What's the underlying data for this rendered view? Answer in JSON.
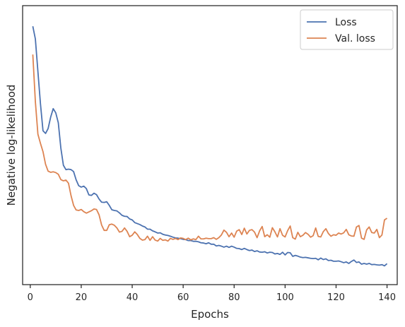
{
  "chart_data": {
    "type": "line",
    "title": "",
    "xlabel": "Epochs",
    "ylabel": "Negative log-likelihood",
    "xlim": [
      -3,
      144
    ],
    "ylim": [
      0,
      1
    ],
    "x_ticks": [
      0,
      20,
      40,
      60,
      80,
      100,
      120,
      140
    ],
    "y_ticks": [],
    "grid": false,
    "legend_position": "top-right",
    "colors": {
      "Loss": "#4c72b0",
      "Val. loss": "#dd8452"
    },
    "series": [
      {
        "name": "Loss",
        "x": [
          1,
          2,
          3,
          4,
          5,
          6,
          7,
          8,
          9,
          10,
          11,
          12,
          13,
          14,
          15,
          16,
          17,
          18,
          19,
          20,
          21,
          22,
          23,
          24,
          25,
          26,
          27,
          28,
          29,
          30,
          31,
          32,
          33,
          34,
          35,
          36,
          37,
          38,
          39,
          40,
          41,
          42,
          43,
          44,
          45,
          46,
          47,
          48,
          49,
          50,
          51,
          52,
          53,
          54,
          55,
          56,
          57,
          58,
          59,
          60,
          61,
          62,
          63,
          64,
          65,
          66,
          67,
          68,
          69,
          70,
          71,
          72,
          73,
          74,
          75,
          76,
          77,
          78,
          79,
          80,
          81,
          82,
          83,
          84,
          85,
          86,
          87,
          88,
          89,
          90,
          91,
          92,
          93,
          94,
          95,
          96,
          97,
          98,
          99,
          100,
          101,
          102,
          103,
          104,
          105,
          106,
          107,
          108,
          109,
          110,
          111,
          112,
          113,
          114,
          115,
          116,
          117,
          118,
          119,
          120,
          121,
          122,
          123,
          124,
          125,
          126,
          127,
          128,
          129,
          130,
          131,
          132,
          133,
          134,
          135,
          136,
          137,
          138,
          139,
          140
        ],
        "values": [
          0.947,
          0.895,
          0.761,
          0.628,
          0.517,
          0.506,
          0.526,
          0.573,
          0.608,
          0.591,
          0.55,
          0.446,
          0.375,
          0.357,
          0.359,
          0.357,
          0.349,
          0.315,
          0.291,
          0.285,
          0.289,
          0.279,
          0.253,
          0.251,
          0.26,
          0.254,
          0.236,
          0.223,
          0.222,
          0.225,
          0.21,
          0.192,
          0.189,
          0.187,
          0.179,
          0.169,
          0.165,
          0.164,
          0.154,
          0.15,
          0.139,
          0.135,
          0.131,
          0.125,
          0.121,
          0.112,
          0.112,
          0.105,
          0.101,
          0.096,
          0.097,
          0.091,
          0.088,
          0.086,
          0.083,
          0.079,
          0.076,
          0.075,
          0.073,
          0.07,
          0.069,
          0.065,
          0.065,
          0.062,
          0.062,
          0.06,
          0.056,
          0.055,
          0.052,
          0.056,
          0.05,
          0.05,
          0.043,
          0.045,
          0.042,
          0.038,
          0.042,
          0.037,
          0.042,
          0.038,
          0.033,
          0.032,
          0.028,
          0.033,
          0.028,
          0.024,
          0.026,
          0.02,
          0.023,
          0.018,
          0.017,
          0.019,
          0.014,
          0.017,
          0.016,
          0.01,
          0.012,
          0.008,
          0.017,
          0.006,
          0.016,
          0.015,
          0.0,
          0.004,
          0.001,
          -0.003,
          -0.005,
          -0.004,
          -0.006,
          -0.008,
          -0.009,
          -0.008,
          -0.014,
          -0.007,
          -0.013,
          -0.01,
          -0.017,
          -0.016,
          -0.02,
          -0.02,
          -0.019,
          -0.022,
          -0.026,
          -0.023,
          -0.029,
          -0.021,
          -0.015,
          -0.025,
          -0.023,
          -0.032,
          -0.029,
          -0.032,
          -0.029,
          -0.034,
          -0.033,
          -0.035,
          -0.036,
          -0.034,
          -0.039,
          -0.03
        ]
      },
      {
        "name": "Val. loss",
        "x": [
          1,
          2,
          3,
          4,
          5,
          6,
          7,
          8,
          9,
          10,
          11,
          12,
          13,
          14,
          15,
          16,
          17,
          18,
          19,
          20,
          21,
          22,
          23,
          24,
          25,
          26,
          27,
          28,
          29,
          30,
          31,
          32,
          33,
          34,
          35,
          36,
          37,
          38,
          39,
          40,
          41,
          42,
          43,
          44,
          45,
          46,
          47,
          48,
          49,
          50,
          51,
          52,
          53,
          54,
          55,
          56,
          57,
          58,
          59,
          60,
          61,
          62,
          63,
          64,
          65,
          66,
          67,
          68,
          69,
          70,
          71,
          72,
          73,
          74,
          75,
          76,
          77,
          78,
          79,
          80,
          81,
          82,
          83,
          84,
          85,
          86,
          87,
          88,
          89,
          90,
          91,
          92,
          93,
          94,
          95,
          96,
          97,
          98,
          99,
          100,
          101,
          102,
          103,
          104,
          105,
          106,
          107,
          108,
          109,
          110,
          111,
          112,
          113,
          114,
          115,
          116,
          117,
          118,
          119,
          120,
          121,
          122,
          123,
          124,
          125,
          126,
          127,
          128,
          129,
          130,
          131,
          132,
          133,
          134,
          135,
          136,
          137,
          138,
          139,
          140
        ],
        "values": [
          0.831,
          0.637,
          0.503,
          0.465,
          0.431,
          0.379,
          0.351,
          0.346,
          0.348,
          0.345,
          0.338,
          0.316,
          0.311,
          0.314,
          0.301,
          0.25,
          0.21,
          0.191,
          0.189,
          0.193,
          0.184,
          0.178,
          0.183,
          0.188,
          0.195,
          0.193,
          0.171,
          0.129,
          0.107,
          0.107,
          0.13,
          0.133,
          0.128,
          0.117,
          0.1,
          0.103,
          0.117,
          0.103,
          0.081,
          0.087,
          0.101,
          0.09,
          0.074,
          0.067,
          0.069,
          0.083,
          0.066,
          0.081,
          0.067,
          0.063,
          0.074,
          0.066,
          0.068,
          0.063,
          0.074,
          0.07,
          0.074,
          0.069,
          0.076,
          0.074,
          0.069,
          0.075,
          0.068,
          0.072,
          0.069,
          0.083,
          0.072,
          0.072,
          0.075,
          0.073,
          0.073,
          0.077,
          0.07,
          0.077,
          0.088,
          0.108,
          0.099,
          0.081,
          0.096,
          0.079,
          0.104,
          0.11,
          0.09,
          0.116,
          0.092,
          0.107,
          0.11,
          0.1,
          0.077,
          0.105,
          0.123,
          0.081,
          0.089,
          0.079,
          0.118,
          0.101,
          0.08,
          0.114,
          0.087,
          0.08,
          0.106,
          0.125,
          0.077,
          0.071,
          0.099,
          0.081,
          0.087,
          0.098,
          0.091,
          0.079,
          0.085,
          0.117,
          0.082,
          0.08,
          0.102,
          0.114,
          0.094,
          0.083,
          0.089,
          0.087,
          0.096,
          0.092,
          0.097,
          0.111,
          0.089,
          0.084,
          0.083,
          0.121,
          0.127,
          0.075,
          0.07,
          0.109,
          0.121,
          0.098,
          0.096,
          0.111,
          0.077,
          0.088,
          0.15,
          0.157
        ]
      }
    ]
  }
}
